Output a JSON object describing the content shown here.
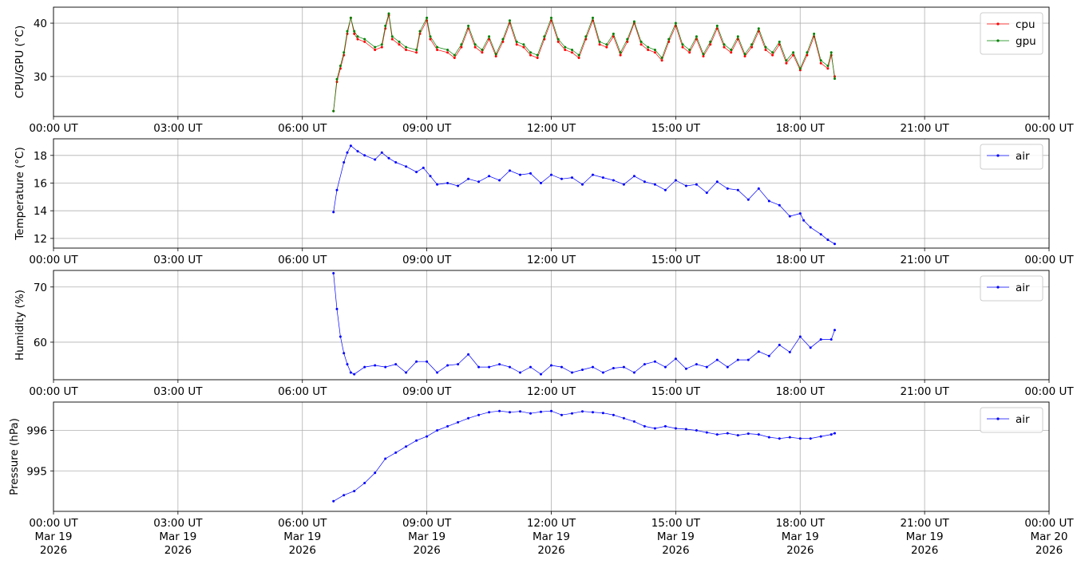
{
  "x_tick_labels": [
    "00:00 UT",
    "03:00 UT",
    "06:00 UT",
    "09:00 UT",
    "12:00 UT",
    "15:00 UT",
    "18:00 UT",
    "21:00 UT",
    "00:00 UT"
  ],
  "x_date_labels": [
    [
      "Mar 19",
      "2026"
    ],
    [
      "Mar 19",
      "2026"
    ],
    [
      "Mar 19",
      "2026"
    ],
    [
      "Mar 19",
      "2026"
    ],
    [
      "Mar 19",
      "2026"
    ],
    [
      "Mar 19",
      "2026"
    ],
    [
      "Mar 19",
      "2026"
    ],
    [
      "Mar 19",
      "2026"
    ],
    [
      "Mar 20",
      "2026"
    ]
  ],
  "colors": {
    "cpu": "#ff0000",
    "gpu": "#008000",
    "air": "#0000ff",
    "grid": "#b0b0b0"
  },
  "chart_data": [
    {
      "type": "line",
      "ylabel": "CPU/GPU (°C)",
      "xlim": [
        "2026-03-19T00:00",
        "2026-03-20T00:00"
      ],
      "ylim": [
        22.5,
        43
      ],
      "yticks": [
        30,
        40
      ],
      "grid": true,
      "legend": "top-right",
      "series": [
        {
          "name": "cpu",
          "x": [
            "06:45",
            "06:50",
            "06:55",
            "07:00",
            "07:05",
            "07:10",
            "07:15",
            "07:20",
            "07:30",
            "07:45",
            "07:55",
            "08:00",
            "08:05",
            "08:10",
            "08:20",
            "08:30",
            "08:45",
            "08:50",
            "09:00",
            "09:05",
            "09:15",
            "09:30",
            "09:40",
            "09:50",
            "10:00",
            "10:10",
            "10:20",
            "10:30",
            "10:40",
            "10:50",
            "11:00",
            "11:10",
            "11:20",
            "11:30",
            "11:40",
            "11:50",
            "12:00",
            "12:10",
            "12:20",
            "12:30",
            "12:40",
            "12:50",
            "13:00",
            "13:10",
            "13:20",
            "13:30",
            "13:40",
            "13:50",
            "14:00",
            "14:10",
            "14:20",
            "14:30",
            "14:40",
            "14:50",
            "15:00",
            "15:10",
            "15:20",
            "15:30",
            "15:40",
            "15:50",
            "16:00",
            "16:10",
            "16:20",
            "16:30",
            "16:40",
            "16:50",
            "17:00",
            "17:10",
            "17:20",
            "17:30",
            "17:40",
            "17:50",
            "18:00",
            "18:10",
            "18:20",
            "18:30",
            "18:40",
            "18:45",
            "18:50"
          ],
          "y": [
            23.5,
            29,
            31.5,
            34,
            38,
            41,
            38,
            37,
            36.5,
            35,
            35.5,
            39,
            41.5,
            37,
            36,
            35,
            34.5,
            38,
            40.5,
            37,
            35,
            34.5,
            33.5,
            35.5,
            39,
            35.5,
            34.5,
            37,
            33.8,
            36.5,
            40,
            36,
            35.5,
            34,
            33.5,
            37,
            40.5,
            36.5,
            35,
            34.5,
            33.5,
            37,
            40.5,
            36,
            35.5,
            37.5,
            34,
            36.5,
            40,
            36,
            35,
            34.5,
            33,
            36.5,
            39.5,
            35.5,
            34.5,
            37,
            33.8,
            36,
            39,
            35.5,
            34.5,
            37,
            33.8,
            35.5,
            38.5,
            35,
            34,
            36,
            32.5,
            34,
            31.2,
            34,
            37.5,
            32.5,
            31.5,
            34,
            30
          ]
        },
        {
          "name": "gpu",
          "x": [
            "06:45",
            "06:50",
            "06:55",
            "07:00",
            "07:05",
            "07:10",
            "07:15",
            "07:20",
            "07:30",
            "07:45",
            "07:55",
            "08:00",
            "08:05",
            "08:10",
            "08:20",
            "08:30",
            "08:45",
            "08:50",
            "09:00",
            "09:05",
            "09:15",
            "09:30",
            "09:40",
            "09:50",
            "10:00",
            "10:10",
            "10:20",
            "10:30",
            "10:40",
            "10:50",
            "11:00",
            "11:10",
            "11:20",
            "11:30",
            "11:40",
            "11:50",
            "12:00",
            "12:10",
            "12:20",
            "12:30",
            "12:40",
            "12:50",
            "13:00",
            "13:10",
            "13:20",
            "13:30",
            "13:40",
            "13:50",
            "14:00",
            "14:10",
            "14:20",
            "14:30",
            "14:40",
            "14:50",
            "15:00",
            "15:10",
            "15:20",
            "15:30",
            "15:40",
            "15:50",
            "16:00",
            "16:10",
            "16:20",
            "16:30",
            "16:40",
            "16:50",
            "17:00",
            "17:10",
            "17:20",
            "17:30",
            "17:40",
            "17:50",
            "18:00",
            "18:10",
            "18:20",
            "18:30",
            "18:40",
            "18:45",
            "18:50"
          ],
          "y": [
            23.5,
            29.5,
            32,
            34.5,
            38.5,
            41,
            38.5,
            37.5,
            37,
            35.5,
            36,
            39.5,
            41.8,
            37.5,
            36.5,
            35.5,
            35,
            38.5,
            41,
            37.5,
            35.5,
            35,
            34,
            36,
            39.5,
            36,
            35,
            37.5,
            34.2,
            37,
            40.5,
            36.5,
            36,
            34.5,
            34,
            37.5,
            41,
            37,
            35.5,
            35,
            34,
            37.5,
            41,
            36.5,
            36,
            38,
            34.5,
            37,
            40.3,
            36.5,
            35.5,
            35,
            33.5,
            37,
            40,
            36,
            35,
            37.5,
            34.2,
            36.5,
            39.5,
            36,
            35,
            37.5,
            34.2,
            36,
            39,
            35.5,
            34.5,
            36.5,
            33,
            34.5,
            31.5,
            34.5,
            38,
            33,
            32,
            34.5,
            29.6
          ]
        }
      ]
    },
    {
      "type": "line",
      "ylabel": "Temperature (°C)",
      "xlim": [
        "2026-03-19T00:00",
        "2026-03-20T00:00"
      ],
      "ylim": [
        11.3,
        19.2
      ],
      "yticks": [
        12,
        14,
        16,
        18
      ],
      "grid": true,
      "legend": "top-right",
      "series": [
        {
          "name": "air",
          "x": [
            "06:45",
            "06:50",
            "07:00",
            "07:05",
            "07:10",
            "07:20",
            "07:30",
            "07:45",
            "07:55",
            "08:05",
            "08:15",
            "08:30",
            "08:45",
            "08:55",
            "09:05",
            "09:15",
            "09:30",
            "09:45",
            "10:00",
            "10:15",
            "10:30",
            "10:45",
            "11:00",
            "11:15",
            "11:30",
            "11:45",
            "12:00",
            "12:15",
            "12:30",
            "12:45",
            "13:00",
            "13:15",
            "13:30",
            "13:45",
            "14:00",
            "14:15",
            "14:30",
            "14:45",
            "15:00",
            "15:15",
            "15:30",
            "15:45",
            "16:00",
            "16:15",
            "16:30",
            "16:45",
            "17:00",
            "17:15",
            "17:30",
            "17:45",
            "18:00",
            "18:05",
            "18:15",
            "18:30",
            "18:40",
            "18:50"
          ],
          "y": [
            13.9,
            15.5,
            17.5,
            18.2,
            18.7,
            18.3,
            18,
            17.7,
            18.2,
            17.8,
            17.5,
            17.2,
            16.8,
            17.1,
            16.5,
            15.9,
            16,
            15.8,
            16.3,
            16.1,
            16.5,
            16.2,
            16.9,
            16.6,
            16.7,
            16,
            16.6,
            16.3,
            16.4,
            15.9,
            16.6,
            16.4,
            16.2,
            15.9,
            16.5,
            16.1,
            15.9,
            15.5,
            16.2,
            15.8,
            15.9,
            15.3,
            16.1,
            15.6,
            15.5,
            14.8,
            15.6,
            14.7,
            14.4,
            13.6,
            13.8,
            13.3,
            12.8,
            12.3,
            11.9,
            11.6
          ]
        }
      ]
    },
    {
      "type": "line",
      "ylabel": "Humidity (%)",
      "xlim": [
        "2026-03-19T00:00",
        "2026-03-20T00:00"
      ],
      "ylim": [
        53.2,
        73
      ],
      "yticks": [
        60,
        70
      ],
      "grid": true,
      "legend": "top-right",
      "series": [
        {
          "name": "air",
          "x": [
            "06:45",
            "06:50",
            "06:55",
            "07:00",
            "07:05",
            "07:10",
            "07:15",
            "07:30",
            "07:45",
            "08:00",
            "08:15",
            "08:30",
            "08:45",
            "09:00",
            "09:15",
            "09:30",
            "09:45",
            "10:00",
            "10:15",
            "10:30",
            "10:45",
            "11:00",
            "11:15",
            "11:30",
            "11:45",
            "12:00",
            "12:15",
            "12:30",
            "12:45",
            "13:00",
            "13:15",
            "13:30",
            "13:45",
            "14:00",
            "14:15",
            "14:30",
            "14:45",
            "15:00",
            "15:15",
            "15:30",
            "15:45",
            "16:00",
            "16:15",
            "16:30",
            "16:45",
            "17:00",
            "17:15",
            "17:30",
            "17:45",
            "18:00",
            "18:15",
            "18:30",
            "18:45",
            "18:50"
          ],
          "y": [
            72.5,
            66,
            61,
            58,
            56,
            54.5,
            54.2,
            55.5,
            55.8,
            55.5,
            56,
            54.5,
            56.5,
            56.5,
            54.5,
            55.8,
            56,
            57.8,
            55.5,
            55.5,
            56,
            55.5,
            54.5,
            55.5,
            54.2,
            55.8,
            55.5,
            54.5,
            55,
            55.5,
            54.5,
            55.3,
            55.5,
            54.5,
            56,
            56.5,
            55.5,
            57,
            55.2,
            56,
            55.5,
            56.8,
            55.5,
            56.8,
            56.8,
            58.3,
            57.5,
            59.5,
            58.2,
            61,
            59,
            60.5,
            60.5,
            62.2
          ]
        }
      ]
    },
    {
      "type": "line",
      "ylabel": "Pressure (hPa)",
      "xlim": [
        "2026-03-19T00:00",
        "2026-03-20T00:00"
      ],
      "ylim": [
        994,
        996.7
      ],
      "yticks": [
        995,
        996
      ],
      "grid": true,
      "legend": "top-right",
      "series": [
        {
          "name": "air",
          "x": [
            "06:45",
            "07:00",
            "07:15",
            "07:30",
            "07:45",
            "08:00",
            "08:15",
            "08:30",
            "08:45",
            "09:00",
            "09:15",
            "09:30",
            "09:45",
            "10:00",
            "10:15",
            "10:30",
            "10:45",
            "11:00",
            "11:15",
            "11:30",
            "11:45",
            "12:00",
            "12:15",
            "12:30",
            "12:45",
            "13:00",
            "13:15",
            "13:30",
            "13:45",
            "14:00",
            "14:15",
            "14:30",
            "14:45",
            "15:00",
            "15:15",
            "15:30",
            "15:45",
            "16:00",
            "16:15",
            "16:30",
            "16:45",
            "17:00",
            "17:15",
            "17:30",
            "17:45",
            "18:00",
            "18:15",
            "18:30",
            "18:45",
            "18:50"
          ],
          "y": [
            994.25,
            994.4,
            994.5,
            994.7,
            994.95,
            995.3,
            995.45,
            995.6,
            995.75,
            995.85,
            996.0,
            996.1,
            996.2,
            996.3,
            996.38,
            996.45,
            996.48,
            996.45,
            996.47,
            996.42,
            996.46,
            996.48,
            996.38,
            996.42,
            996.47,
            996.45,
            996.43,
            996.38,
            996.3,
            996.22,
            996.1,
            996.05,
            996.1,
            996.05,
            996.03,
            996.0,
            995.95,
            995.9,
            995.93,
            995.88,
            995.92,
            995.9,
            995.83,
            995.8,
            995.83,
            995.8,
            995.8,
            995.85,
            995.9,
            995.93
          ]
        }
      ]
    }
  ]
}
